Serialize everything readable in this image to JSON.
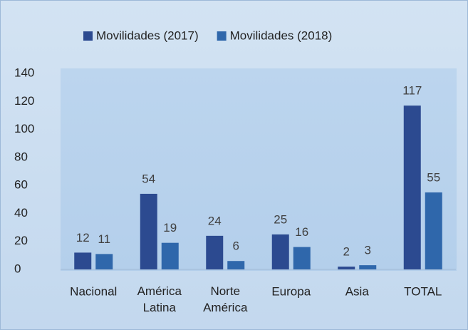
{
  "chart_data": {
    "type": "bar",
    "categories": [
      "Nacional",
      "América Latina",
      "Norte América",
      "Europa",
      "Asia",
      "TOTAL"
    ],
    "series": [
      {
        "name": "Movilidades (2017)",
        "color": "#2c4a90",
        "values": [
          12,
          54,
          24,
          25,
          2,
          117
        ]
      },
      {
        "name": "Movilidades (2018)",
        "color": "#2f67ab",
        "values": [
          11,
          19,
          6,
          16,
          3,
          55
        ]
      }
    ],
    "ylim": [
      0,
      140
    ],
    "yticks": [
      0,
      20,
      40,
      60,
      80,
      100,
      120,
      140
    ],
    "legend": "top",
    "data_labels": true
  }
}
